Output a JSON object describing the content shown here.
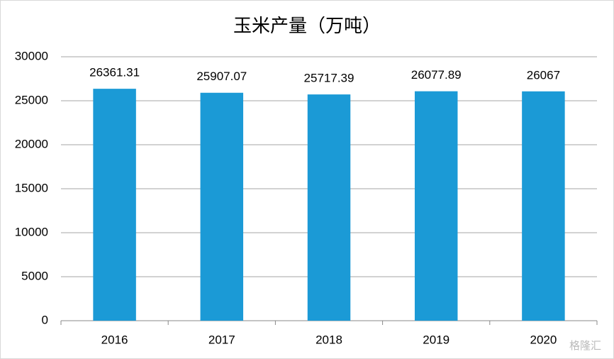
{
  "chart_data": {
    "type": "bar",
    "title": "玉米产量（万吨）",
    "categories": [
      "2016",
      "2017",
      "2018",
      "2019",
      "2020"
    ],
    "values": [
      26361.31,
      25907.07,
      25717.39,
      26077.89,
      26067
    ],
    "color": "#1b9ad6",
    "ylim": [
      0,
      30000
    ],
    "yticks": [
      0,
      5000,
      10000,
      15000,
      20000,
      25000,
      30000
    ],
    "grid": true,
    "data_labels": true,
    "watermark": "格隆汇"
  }
}
